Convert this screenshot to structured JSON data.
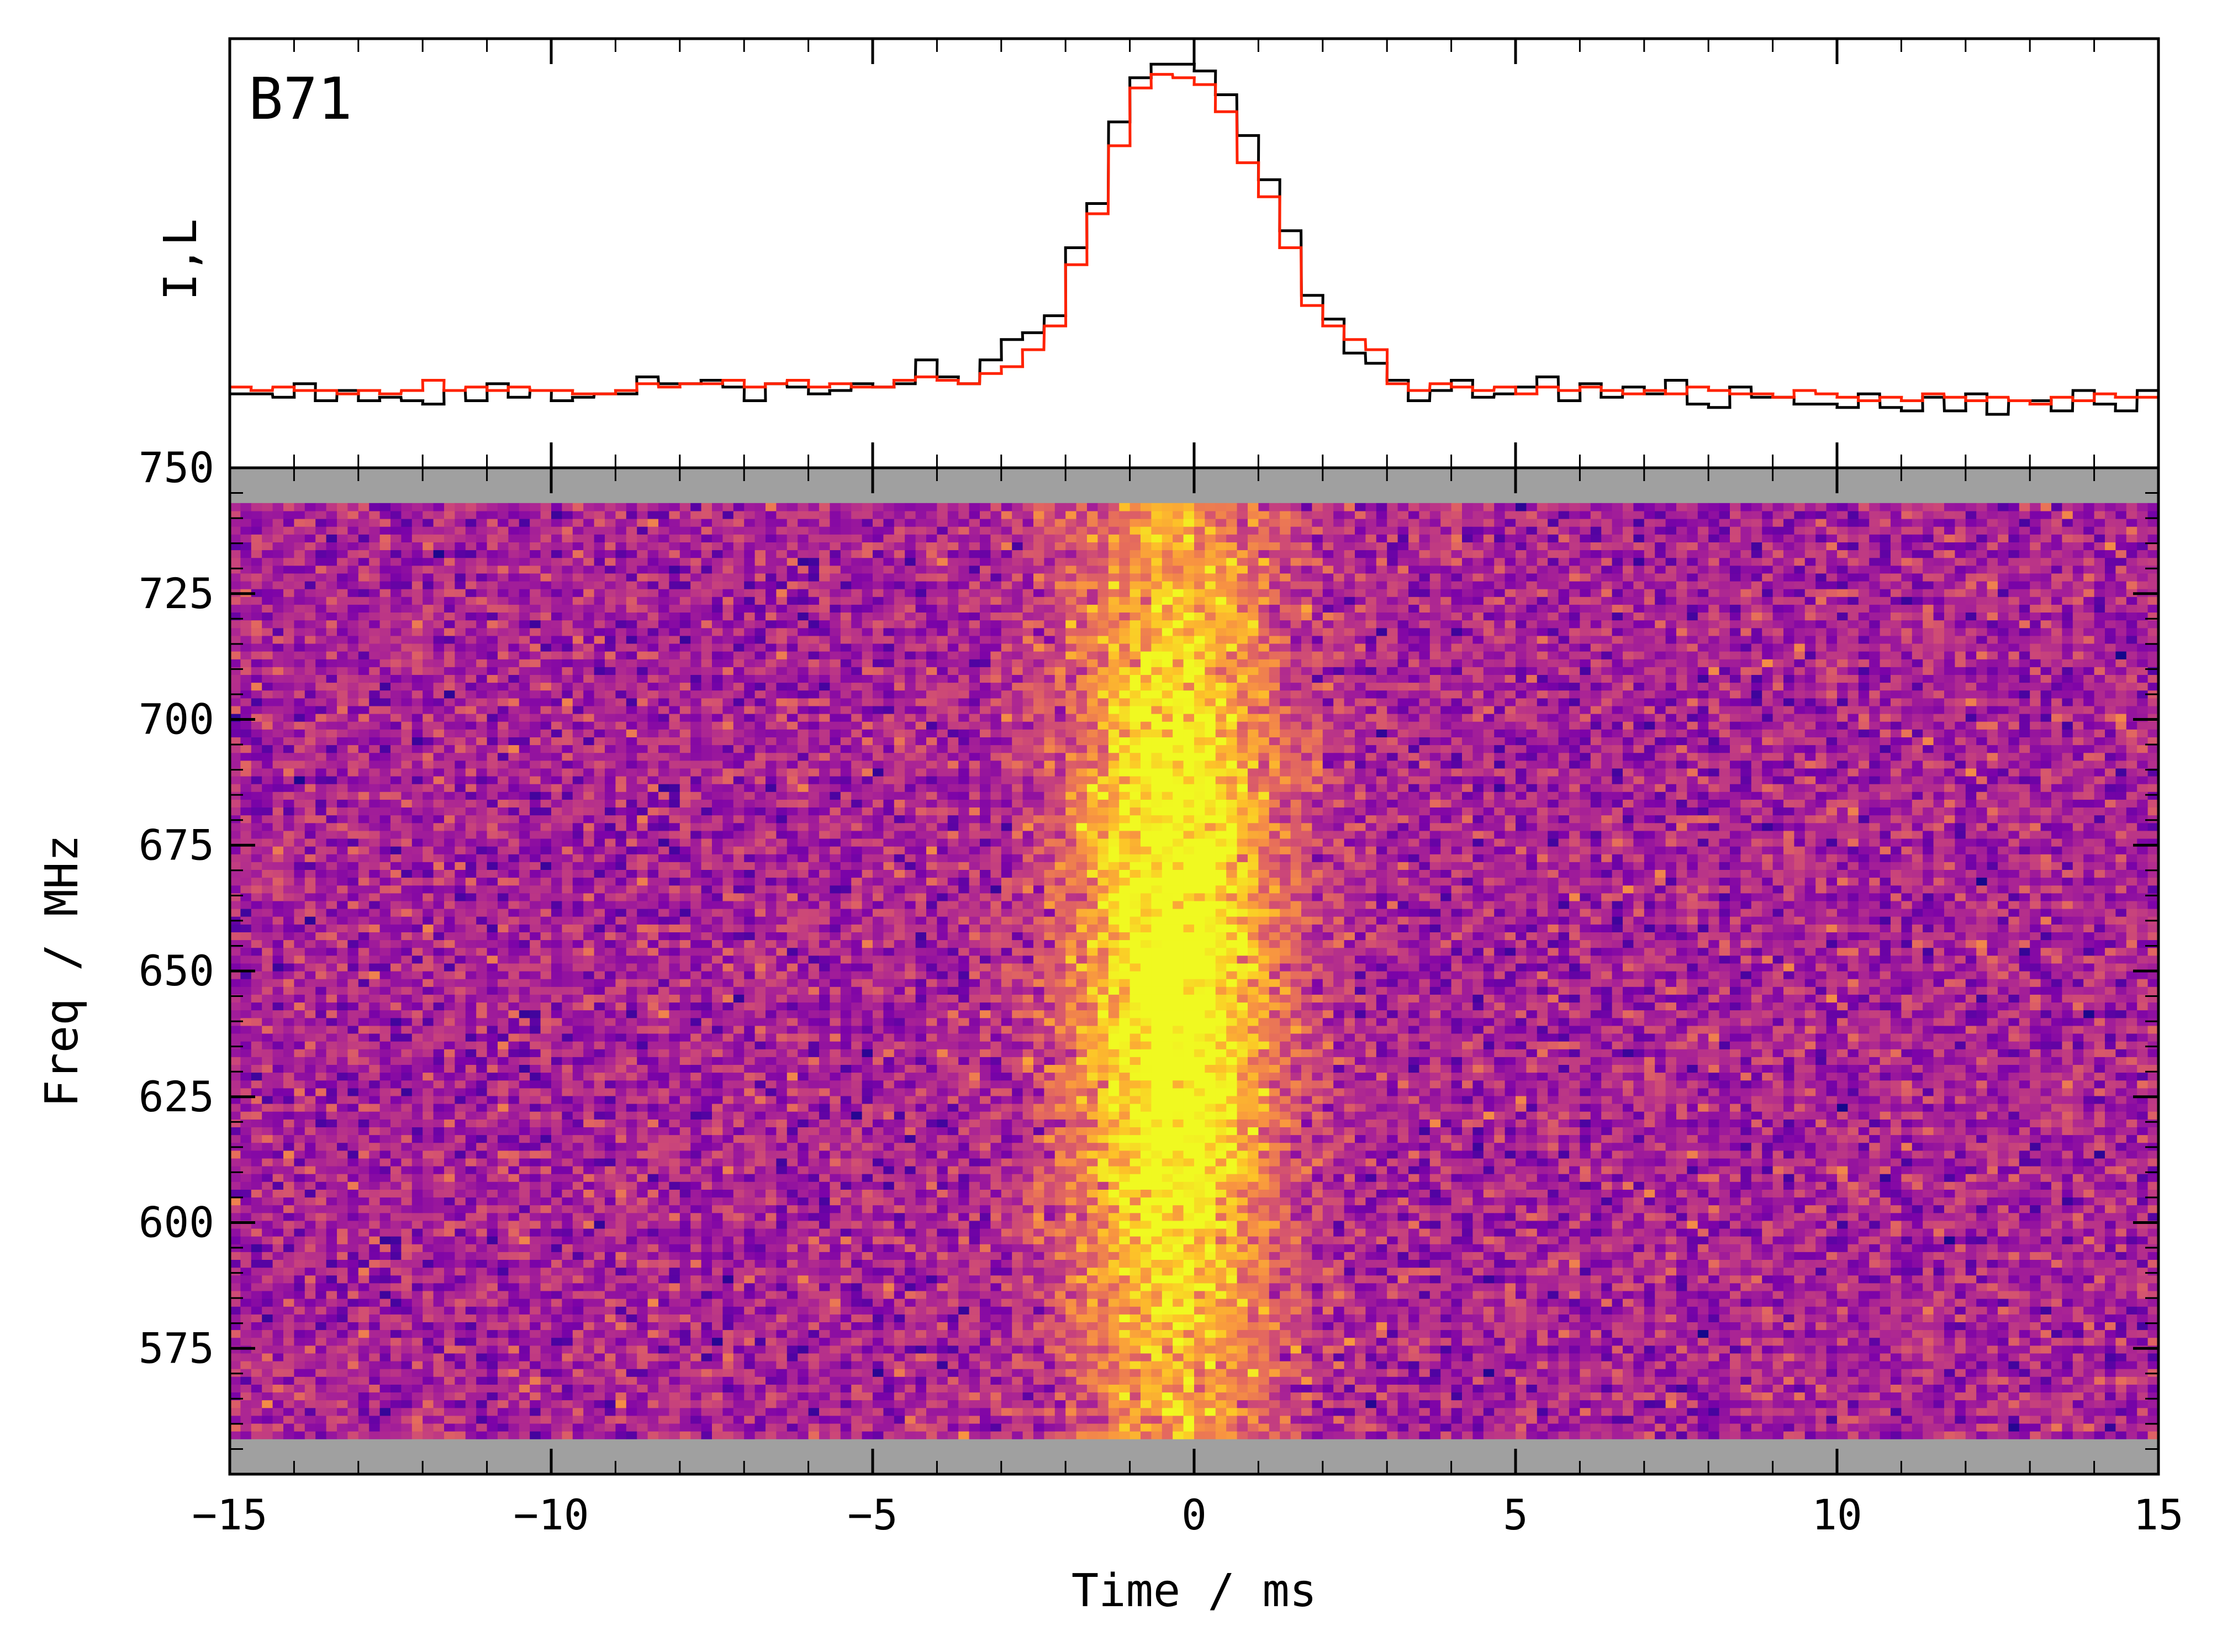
{
  "chart_data": [
    {
      "type": "line",
      "panel": "profile",
      "annotation": "B71",
      "ylabel": "I,L",
      "xlim": [
        -15,
        15
      ],
      "x_ticks_labeled": false,
      "y_ticks_labeled": false,
      "series": [
        {
          "color": "#000000",
          "x": [
            -15,
            -14.67,
            -14.33,
            -14,
            -13.67,
            -13.33,
            -13,
            -12.67,
            -12.33,
            -12,
            -11.67,
            -11.33,
            -11,
            -10.67,
            -10.33,
            -10,
            -9.67,
            -9.33,
            -9,
            -8.67,
            -8.33,
            -8,
            -7.67,
            -7.33,
            -7,
            -6.67,
            -6.33,
            -6,
            -5.67,
            -5.33,
            -5,
            -4.67,
            -4.33,
            -4,
            -3.67,
            -3.33,
            -3,
            -2.67,
            -2.33,
            -2,
            -1.67,
            -1.33,
            -1,
            -0.67,
            -0.33,
            0,
            0.33,
            0.67,
            1,
            1.33,
            1.67,
            2,
            2.33,
            2.67,
            3,
            3.33,
            3.67,
            4,
            4.33,
            4.67,
            5,
            5.33,
            5.67,
            6,
            6.33,
            6.67,
            7,
            7.33,
            7.67,
            8,
            8.33,
            8.67,
            9,
            9.33,
            9.67,
            10,
            10.33,
            10.67,
            11,
            11.33,
            11.67,
            12,
            12.33,
            12.67,
            13,
            13.33,
            13.67,
            14,
            14.33,
            14.67
          ],
          "y": [
            0.02,
            0.02,
            0.01,
            0.05,
            0.0,
            0.03,
            0.0,
            0.01,
            0.0,
            -0.01,
            0.03,
            0.0,
            0.05,
            0.01,
            0.03,
            0.0,
            0.01,
            0.02,
            0.02,
            0.07,
            0.05,
            0.05,
            0.06,
            0.04,
            0.0,
            0.05,
            0.04,
            0.02,
            0.03,
            0.05,
            0.04,
            0.05,
            0.12,
            0.07,
            0.05,
            0.12,
            0.18,
            0.2,
            0.25,
            0.45,
            0.58,
            0.82,
            0.95,
            0.99,
            0.99,
            0.97,
            0.9,
            0.78,
            0.65,
            0.5,
            0.31,
            0.24,
            0.14,
            0.11,
            0.06,
            0.0,
            0.03,
            0.06,
            0.01,
            0.02,
            0.04,
            0.07,
            0.0,
            0.05,
            0.01,
            0.04,
            0.02,
            0.06,
            -0.01,
            -0.02,
            0.04,
            0.01,
            0.01,
            -0.01,
            -0.01,
            -0.02,
            0.02,
            -0.02,
            -0.03,
            0.01,
            -0.03,
            0.02,
            -0.04,
            0.0,
            0.0,
            -0.03,
            0.03,
            -0.01,
            -0.03,
            0.03
          ]
        },
        {
          "color": "#ff2200",
          "x": [
            -15,
            -14.67,
            -14.33,
            -14,
            -13.67,
            -13.33,
            -13,
            -12.67,
            -12.33,
            -12,
            -11.67,
            -11.33,
            -11,
            -10.67,
            -10.33,
            -10,
            -9.67,
            -9.33,
            -9,
            -8.67,
            -8.33,
            -8,
            -7.67,
            -7.33,
            -7,
            -6.67,
            -6.33,
            -6,
            -5.67,
            -5.33,
            -5,
            -4.67,
            -4.33,
            -4,
            -3.67,
            -3.33,
            -3,
            -2.67,
            -2.33,
            -2,
            -1.67,
            -1.33,
            -1,
            -0.67,
            -0.33,
            0,
            0.33,
            0.67,
            1,
            1.33,
            1.67,
            2,
            2.33,
            2.67,
            3,
            3.33,
            3.67,
            4,
            4.33,
            4.67,
            5,
            5.33,
            5.67,
            6,
            6.33,
            6.67,
            7,
            7.33,
            7.67,
            8,
            8.33,
            8.67,
            9,
            9.33,
            9.67,
            10,
            10.33,
            10.67,
            11,
            11.33,
            11.67,
            12,
            12.33,
            12.67,
            13,
            13.33,
            13.67,
            14,
            14.33,
            14.67
          ],
          "y": [
            0.04,
            0.03,
            0.04,
            0.03,
            0.03,
            0.02,
            0.03,
            0.02,
            0.03,
            0.06,
            0.03,
            0.04,
            0.03,
            0.04,
            0.03,
            0.03,
            0.02,
            0.02,
            0.03,
            0.05,
            0.04,
            0.05,
            0.05,
            0.06,
            0.04,
            0.05,
            0.06,
            0.04,
            0.05,
            0.04,
            0.04,
            0.06,
            0.07,
            0.06,
            0.05,
            0.08,
            0.1,
            0.15,
            0.22,
            0.4,
            0.55,
            0.75,
            0.92,
            0.96,
            0.95,
            0.93,
            0.85,
            0.7,
            0.6,
            0.45,
            0.28,
            0.22,
            0.18,
            0.15,
            0.05,
            0.03,
            0.05,
            0.04,
            0.03,
            0.04,
            0.02,
            0.04,
            0.03,
            0.04,
            0.03,
            0.02,
            0.03,
            0.02,
            0.04,
            0.03,
            0.02,
            0.02,
            0.01,
            0.03,
            0.02,
            0.01,
            0.0,
            0.01,
            0.0,
            0.02,
            0.01,
            0.0,
            0.01,
            0.0,
            -0.01,
            0.01,
            0.0,
            0.02,
            0.01,
            0.01
          ]
        }
      ]
    },
    {
      "type": "heatmap",
      "panel": "dynamic-spectrum",
      "xlabel": "Time / ms",
      "ylabel": "Freq / MHz",
      "xlim": [
        -15,
        15
      ],
      "ylim": [
        550,
        750
      ],
      "x_ticks": [
        "−15",
        "−10",
        "−5",
        "0",
        "5",
        "10",
        "15"
      ],
      "x_tick_values": [
        -15,
        -10,
        -5,
        0,
        5,
        10,
        15
      ],
      "y_ticks": [
        "575",
        "600",
        "625",
        "650",
        "675",
        "700",
        "725",
        "750"
      ],
      "y_tick_values": [
        575,
        600,
        625,
        650,
        675,
        700,
        725,
        750
      ],
      "colormap": "plasma",
      "masked_color": "#a0a0a0",
      "masked_ranges_mhz": [
        [
          743,
          750
        ],
        [
          550,
          557
        ]
      ],
      "burst_center_ms": -0.3,
      "burst_width_ms": 1.6,
      "burst_extent_mhz": [
        565,
        735
      ]
    }
  ]
}
